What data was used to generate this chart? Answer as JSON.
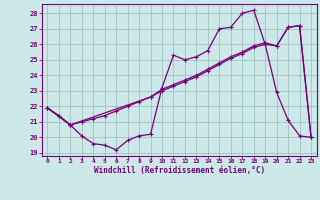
{
  "title": "",
  "xlabel": "Windchill (Refroidissement éolien,°C)",
  "bg_color": "#cce8e8",
  "grid_color": "#99bbbb",
  "line_color": "#770077",
  "xlim": [
    -0.5,
    23.5
  ],
  "ylim": [
    18.8,
    28.6
  ],
  "yticks": [
    19,
    20,
    21,
    22,
    23,
    24,
    25,
    26,
    27,
    28
  ],
  "xticks": [
    0,
    1,
    2,
    3,
    4,
    5,
    6,
    7,
    8,
    9,
    10,
    11,
    12,
    13,
    14,
    15,
    16,
    17,
    18,
    19,
    20,
    21,
    22,
    23
  ],
  "series1_x": [
    0,
    1,
    2,
    3,
    4,
    5,
    6,
    7,
    8,
    9,
    10,
    11,
    12,
    13,
    14,
    15,
    16,
    17,
    18,
    19,
    20,
    21,
    22,
    23
  ],
  "series1_y": [
    21.9,
    21.4,
    20.8,
    20.1,
    19.6,
    19.5,
    19.2,
    19.8,
    20.1,
    20.2,
    23.2,
    25.3,
    25.0,
    25.2,
    25.6,
    27.0,
    27.1,
    28.0,
    28.2,
    26.0,
    22.9,
    21.1,
    20.1,
    20.0
  ],
  "series2_x": [
    0,
    1,
    2,
    3,
    4,
    5,
    6,
    7,
    8,
    9,
    10,
    11,
    12,
    13,
    14,
    15,
    16,
    17,
    18,
    19,
    20,
    21,
    22,
    23
  ],
  "series2_y": [
    21.9,
    21.4,
    20.8,
    21.0,
    21.2,
    21.4,
    21.7,
    22.0,
    22.3,
    22.6,
    23.0,
    23.3,
    23.6,
    23.9,
    24.3,
    24.7,
    25.1,
    25.4,
    25.8,
    26.0,
    25.9,
    27.1,
    27.2,
    20.0
  ],
  "series3_x": [
    0,
    2,
    9,
    10,
    11,
    12,
    13,
    14,
    15,
    16,
    17,
    18,
    19,
    20,
    21,
    22,
    23
  ],
  "series3_y": [
    21.9,
    20.8,
    22.6,
    23.1,
    23.4,
    23.7,
    24.0,
    24.4,
    24.8,
    25.2,
    25.5,
    25.9,
    26.1,
    25.9,
    27.1,
    27.2,
    20.0
  ]
}
